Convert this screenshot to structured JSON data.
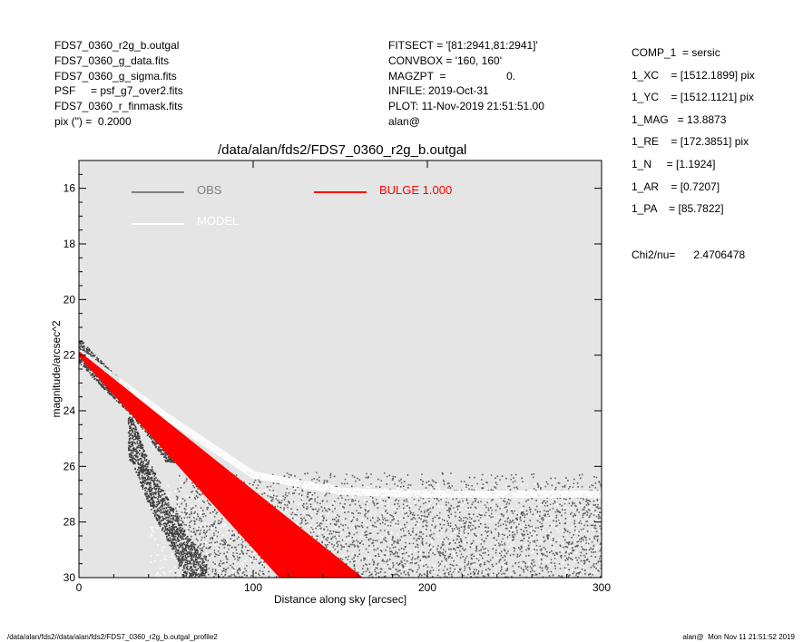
{
  "header_left": [
    "FDS7_0360_r2g_b.outgal",
    "FDS7_0360_g_data.fits",
    "FDS7_0360_g_sigma.fits",
    "PSF     = psf_g7_over2.fits",
    "FDS7_0360_r_finmask.fits",
    "pix (\") =  0.2000"
  ],
  "header_mid": [
    "FITSECT = '[81:2941,81:2941]'",
    "CONVBOX = '160, 160'",
    "MAGZPT  =                    0.",
    "INFILE: 2019-Oct-31",
    "PLOT: 11-Nov-2019 21:51:51.00",
    "alan@"
  ],
  "header_right": [
    "COMP_1  = sersic",
    "1_XC    = [1512.1899] pix",
    "1_YC    = [1512.1121] pix",
    "1_MAG   = 13.8873",
    "1_RE    = [172.3851] pix",
    "1_N     = [1.1924]",
    "1_AR    = [0.7207]",
    "1_PA    = [85.7822]"
  ],
  "chi2_label": "Chi2/nu=",
  "chi2_value": "2.4706478",
  "footer_left": "/data/alan/fds2//data/alan/fds2/FDS7_0360_r2g_b.outgal_profile2",
  "footer_right": "alan@  Mon Nov 11 21:51:52 2019",
  "chart_data": {
    "type": "scatter",
    "title": "/data/alan/fds2/FDS7_0360_r2g_b.outgal",
    "xlabel": "Distance along sky [arcsec]",
    "ylabel": "magnitude/arcsec^2",
    "xlim": [
      0,
      300
    ],
    "ylim": [
      30,
      15
    ],
    "y_inverted": true,
    "x_ticks": [
      0,
      100,
      200,
      300
    ],
    "y_ticks": [
      16,
      18,
      20,
      22,
      24,
      26,
      28,
      30
    ],
    "background": "#e5e5e5",
    "legend": [
      {
        "label": "OBS",
        "color": "#808080"
      },
      {
        "label": "MODEL",
        "color": "#ffffff"
      },
      {
        "label": "BULGE  1.000",
        "color": "#ff0000"
      }
    ],
    "series": [
      {
        "name": "OBS",
        "color": "#555555",
        "bands": [
          {
            "x": [
              0,
              10,
              20,
              30,
              40,
              50
            ],
            "y": [
              21.8,
              22.5,
              23.1,
              23.7,
              24.5,
              25.4
            ]
          },
          {
            "x": [
              30,
              40,
              50,
              60,
              70
            ],
            "y": [
              25.0,
              26.6,
              27.8,
              29.0,
              30.0
            ]
          },
          {
            "x": [
              60,
              100,
              150,
              200,
              250,
              300
            ],
            "y": [
              26.4,
              26.5,
              26.5,
              26.5,
              26.5,
              26.5
            ],
            "spread": 4
          }
        ]
      },
      {
        "name": "MODEL",
        "color": "#ffffff",
        "x": [
          0,
          50,
          100,
          150,
          200,
          250,
          300
        ],
        "y": [
          21.9,
          24.2,
          26.3,
          26.9,
          27.0,
          27.0,
          27.0
        ]
      },
      {
        "name": "BULGE  1.000",
        "color": "#ff0000",
        "x": [
          0,
          163
        ],
        "y_upper": [
          21.9,
          30.0
        ],
        "y_lower": [
          22.0,
          30.0
        ],
        "x_lower_end": 115
      }
    ]
  }
}
